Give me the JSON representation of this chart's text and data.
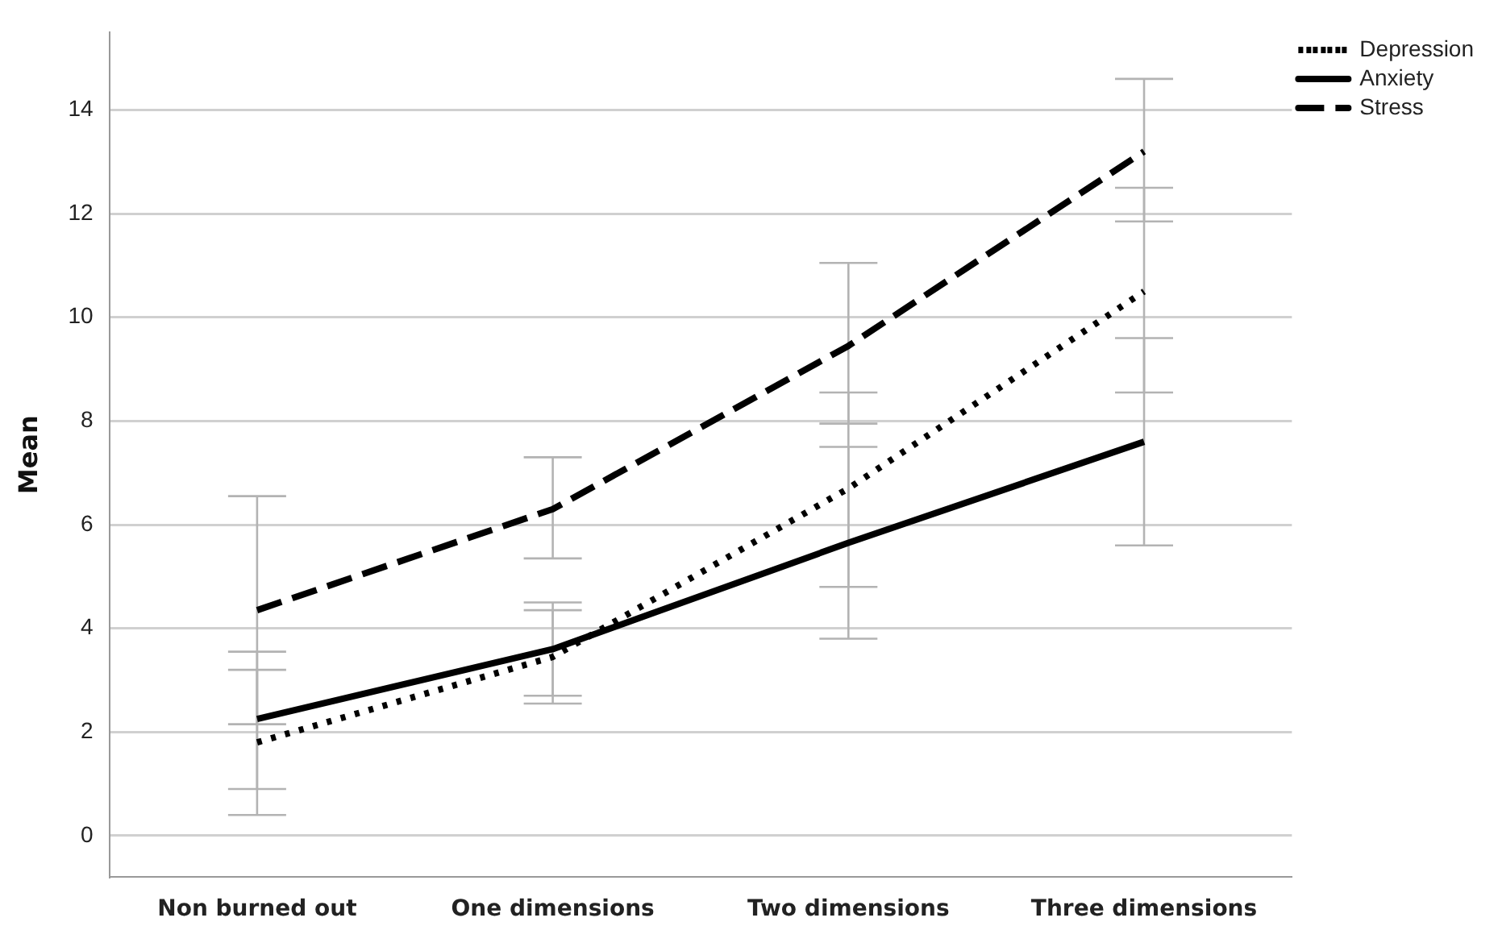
{
  "chart_data": {
    "type": "line",
    "ylabel": "Mean",
    "categories": [
      "Non burned out",
      "One dimensions",
      "Two dimensions",
      "Three dimensions"
    ],
    "series": [
      {
        "name": "Depression",
        "color": "#000000",
        "line_style": "dotted",
        "values": [
          1.8,
          3.45,
          6.7,
          10.5
        ],
        "errors": [
          [
            0.4,
            3.2
          ],
          [
            2.55,
            4.35
          ],
          [
            4.8,
            8.55
          ],
          [
            8.55,
            12.5
          ]
        ]
      },
      {
        "name": "Anxiety",
        "color": "#000000",
        "line_style": "solid",
        "values": [
          2.25,
          3.6,
          5.65,
          7.6
        ],
        "errors": [
          [
            0.9,
            3.55
          ],
          [
            2.7,
            4.5
          ],
          [
            3.8,
            7.5
          ],
          [
            5.6,
            9.6
          ]
        ]
      },
      {
        "name": "Stress",
        "color": "#000000",
        "line_style": "dashed",
        "values": [
          4.35,
          6.3,
          9.45,
          13.2
        ],
        "errors": [
          [
            2.15,
            6.55
          ],
          [
            5.35,
            7.3
          ],
          [
            7.95,
            11.05
          ],
          [
            11.85,
            14.6
          ]
        ]
      }
    ],
    "ylim": [
      -0.8,
      15.5
    ],
    "yticks": [
      0,
      2,
      4,
      6,
      8,
      10,
      12,
      14
    ],
    "grid": "y",
    "legend": "top right",
    "marker": "none"
  }
}
